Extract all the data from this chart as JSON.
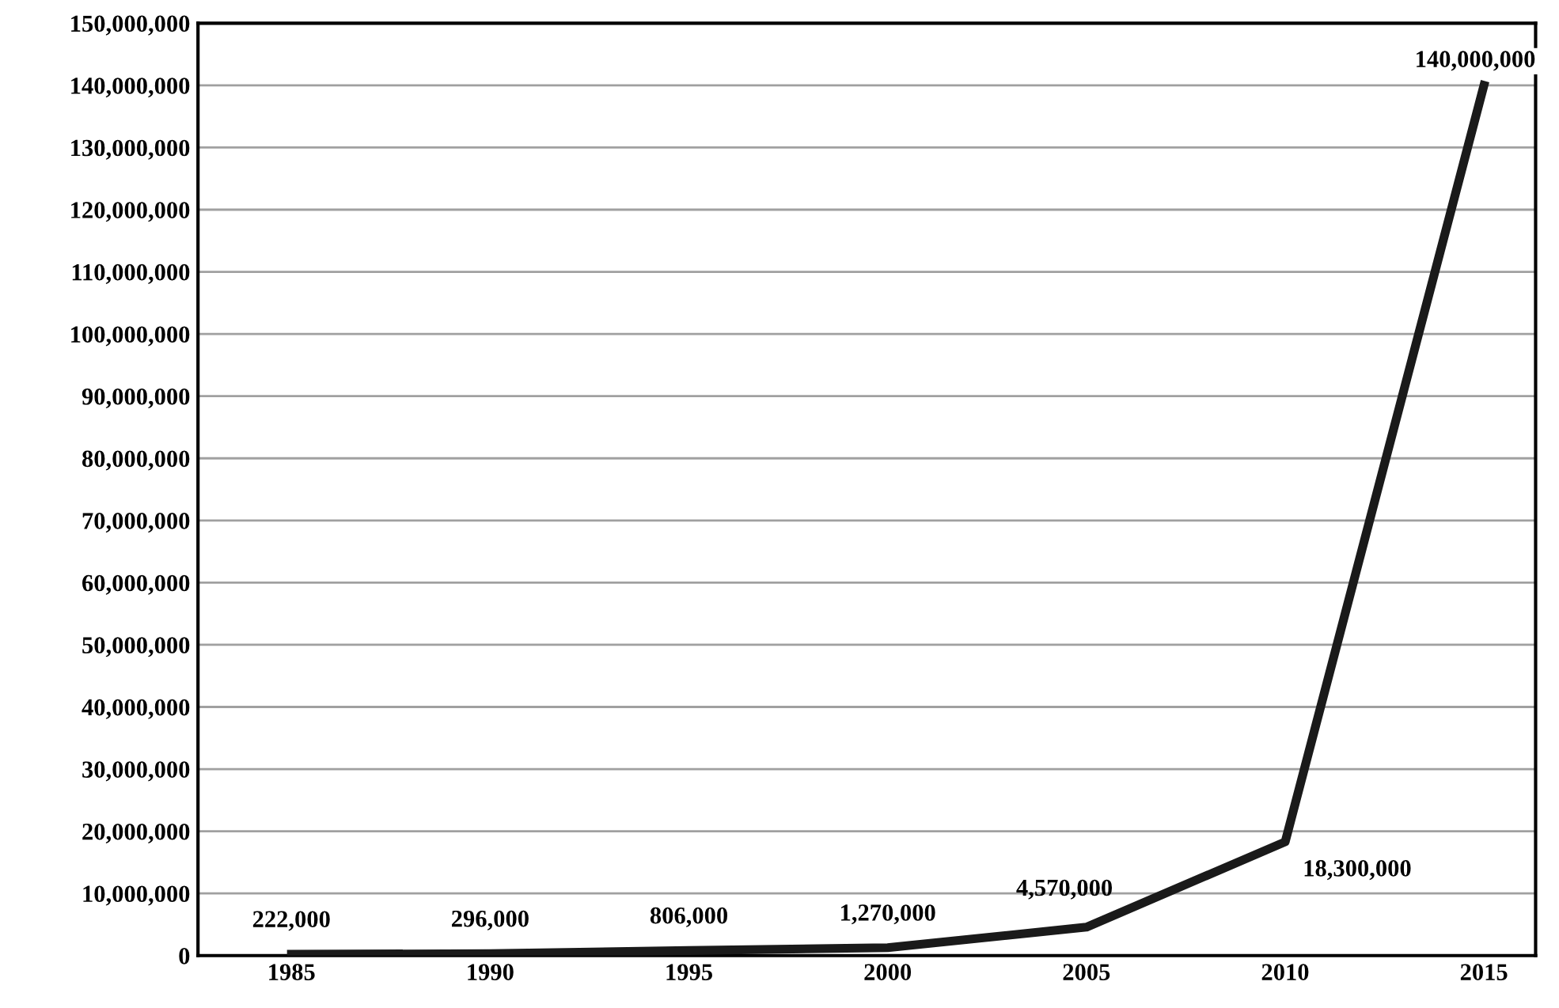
{
  "chart_data": {
    "type": "line",
    "categories": [
      "1985",
      "1990",
      "1995",
      "2000",
      "2005",
      "2010",
      "2015"
    ],
    "series": [
      {
        "color": "#1a1a1a",
        "values": [
          222000,
          296000,
          806000,
          1270000,
          4570000,
          18300000,
          140000000
        ],
        "value_labels": [
          "222,000",
          "296,000",
          "806,000",
          "1,270,000",
          "4,570,000",
          "18,300,000",
          "140,000,000"
        ]
      }
    ],
    "ylim": [
      0,
      150000000
    ],
    "yticks": [
      {
        "value": 0,
        "label": "0"
      },
      {
        "value": 10000000,
        "label": "10,000,000"
      },
      {
        "value": 20000000,
        "label": "20,000,000"
      },
      {
        "value": 30000000,
        "label": "30,000,000"
      },
      {
        "value": 40000000,
        "label": "40,000,000"
      },
      {
        "value": 50000000,
        "label": "50,000,000"
      },
      {
        "value": 60000000,
        "label": "60,000,000"
      },
      {
        "value": 70000000,
        "label": "70,000,000"
      },
      {
        "value": 80000000,
        "label": "80,000,000"
      },
      {
        "value": 90000000,
        "label": "90,000,000"
      },
      {
        "value": 100000000,
        "label": "100,000,000"
      },
      {
        "value": 110000000,
        "label": "110,000,000"
      },
      {
        "value": 120000000,
        "label": "120,000,000"
      },
      {
        "value": 130000000,
        "label": "130,000,000"
      },
      {
        "value": 140000000,
        "label": "140,000,000"
      },
      {
        "value": 150000000,
        "label": "150,000,000"
      }
    ],
    "grid": "y",
    "legend": false,
    "marker": "none",
    "line_style": "solid"
  }
}
